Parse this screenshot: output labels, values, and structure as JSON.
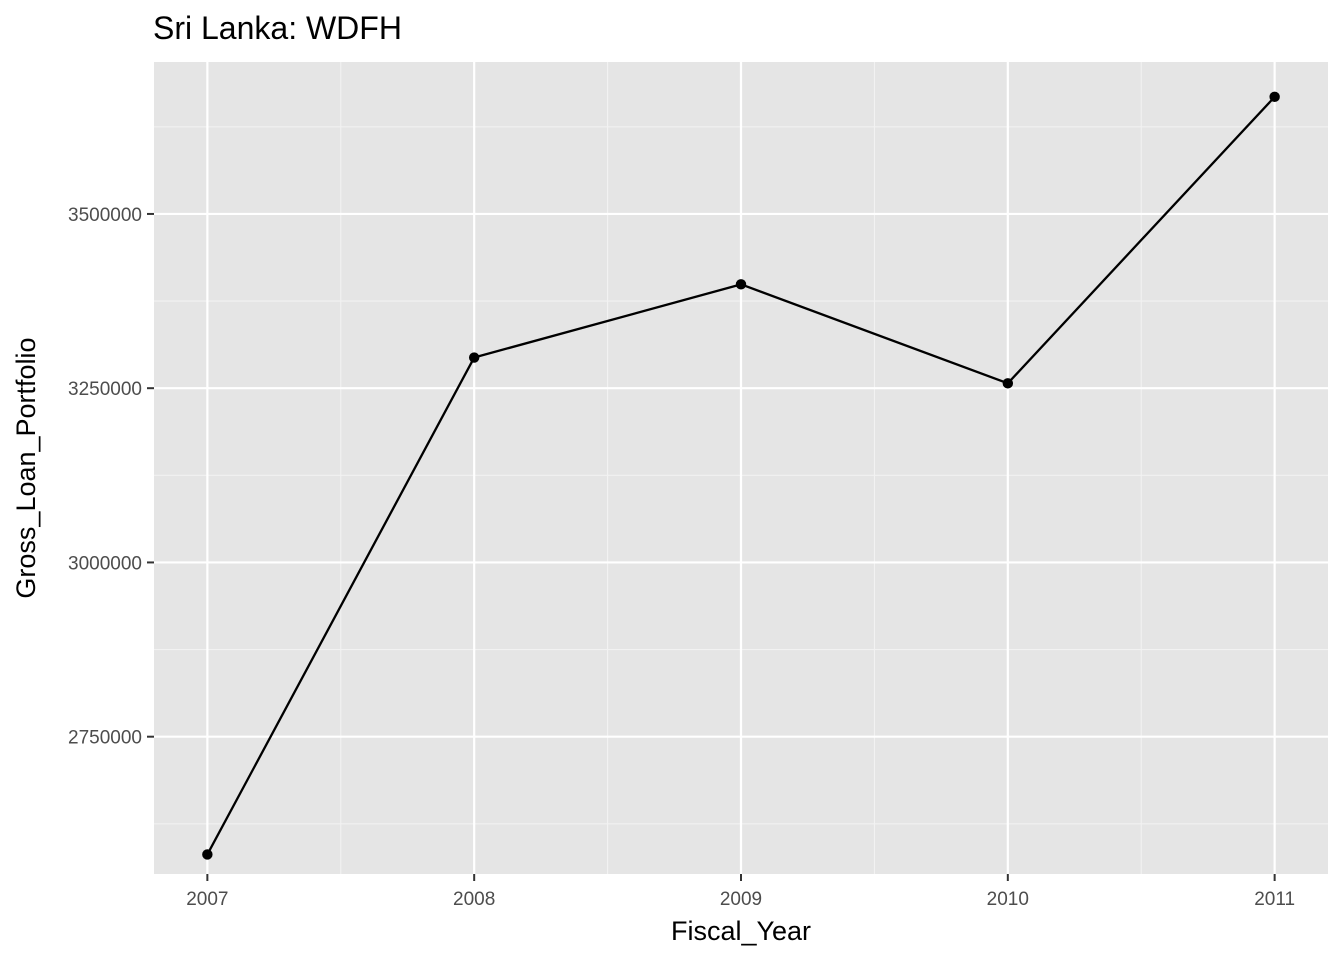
{
  "chart_data": {
    "type": "line",
    "title": "Sri Lanka:  WDFH",
    "xlabel": "Fiscal_Year",
    "ylabel": "Gross_Loan_Portfolio",
    "x": [
      2007,
      2008,
      2009,
      2010,
      2011
    ],
    "series": [
      {
        "values": [
          2581000,
          3294000,
          3399000,
          3257000,
          3668000
        ]
      }
    ],
    "xlim": [
      2006.8,
      2011.2
    ],
    "ylim": [
      2553000,
      3718000
    ],
    "x_ticks": [
      "2007",
      "2008",
      "2009",
      "2010",
      "2011"
    ],
    "y_ticks": [
      {
        "value": 2750000,
        "label": "2750000"
      },
      {
        "value": 3000000,
        "label": "3000000"
      },
      {
        "value": 3250000,
        "label": "3250000"
      },
      {
        "value": 3500000,
        "label": "3500000"
      }
    ],
    "grid": true,
    "legend": "none",
    "colors": {
      "panel_background": "#E5E5E5",
      "grid_major": "#FFFFFF",
      "grid_minor": "#F2F2F2",
      "line": "#000000",
      "point": "#000000",
      "tick_text": "#4D4D4D"
    }
  }
}
